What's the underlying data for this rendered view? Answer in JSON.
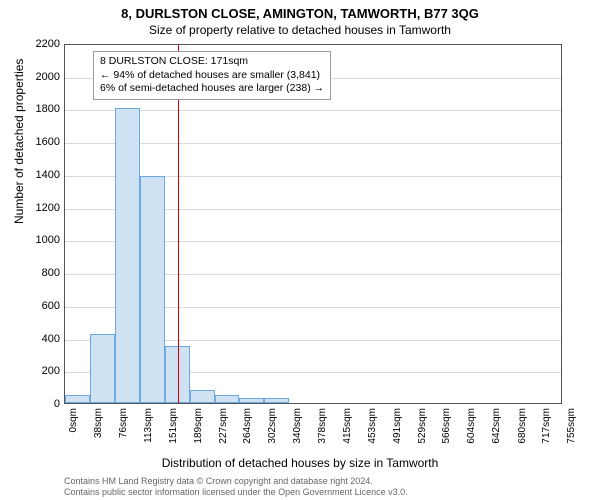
{
  "title": "8, DURLSTON CLOSE, AMINGTON, TAMWORTH, B77 3QG",
  "subtitle": "Size of property relative to detached houses in Tamworth",
  "ylabel": "Number of detached properties",
  "xlabel": "Distribution of detached houses by size in Tamworth",
  "chart": {
    "type": "histogram",
    "ylim": [
      0,
      2200
    ],
    "ytick_step": 200,
    "grid_color": "#d9d9d9",
    "axis_color": "#555555",
    "background_color": "#ffffff",
    "bar_fill": "#cfe2f3",
    "bar_border": "#6fa8dc",
    "refline_color": "#cc0000",
    "annot_border": "#999999",
    "refline_x": 171,
    "xtick_labels": [
      "0sqm",
      "38sqm",
      "76sqm",
      "113sqm",
      "151sqm",
      "189sqm",
      "227sqm",
      "264sqm",
      "302sqm",
      "340sqm",
      "378sqm",
      "415sqm",
      "453sqm",
      "491sqm",
      "529sqm",
      "566sqm",
      "604sqm",
      "642sqm",
      "680sqm",
      "717sqm",
      "755sqm"
    ],
    "xtick_values": [
      0,
      38,
      76,
      113,
      151,
      189,
      227,
      264,
      302,
      340,
      378,
      415,
      453,
      491,
      529,
      566,
      604,
      642,
      680,
      717,
      755
    ],
    "bars": [
      {
        "x0": 0,
        "x1": 38,
        "y": 50
      },
      {
        "x0": 38,
        "x1": 76,
        "y": 420
      },
      {
        "x0": 76,
        "x1": 113,
        "y": 1800
      },
      {
        "x0": 113,
        "x1": 151,
        "y": 1390
      },
      {
        "x0": 151,
        "x1": 189,
        "y": 350
      },
      {
        "x0": 189,
        "x1": 227,
        "y": 80
      },
      {
        "x0": 227,
        "x1": 264,
        "y": 50
      },
      {
        "x0": 264,
        "x1": 302,
        "y": 30
      },
      {
        "x0": 302,
        "x1": 340,
        "y": 30
      },
      {
        "x0": 340,
        "x1": 378,
        "y": 0
      },
      {
        "x0": 378,
        "x1": 415,
        "y": 0
      }
    ],
    "xmax": 755
  },
  "annotation": {
    "line1": "8 DURLSTON CLOSE: 171sqm",
    "line2": "← 94% of detached houses are smaller (3,841)",
    "line3": "6% of semi-detached houses are larger (238) →"
  },
  "footer": {
    "line1": "Contains HM Land Registry data © Crown copyright and database right 2024.",
    "line2": "Contains public sector information licensed under the Open Government Licence v3.0."
  }
}
